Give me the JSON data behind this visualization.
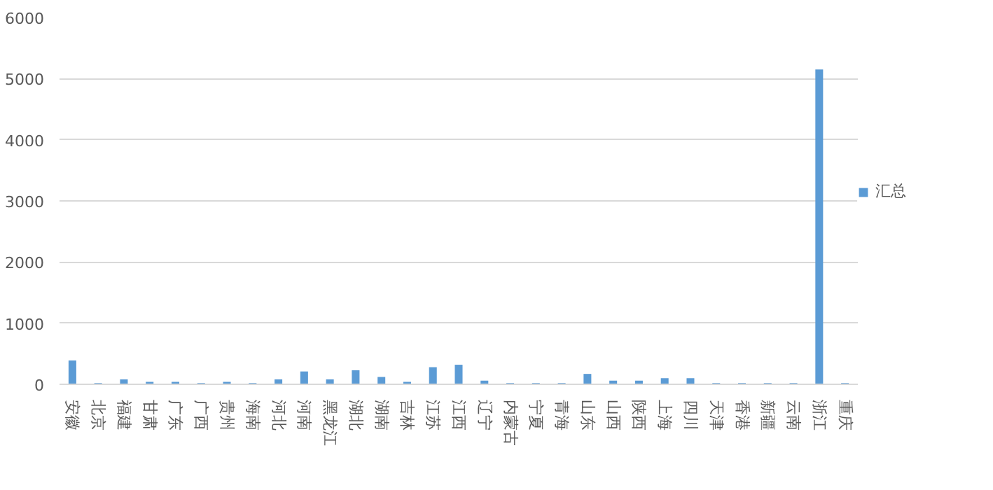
{
  "chart_data": {
    "type": "bar",
    "categories": [
      "安徽",
      "北京",
      "福建",
      "甘肃",
      "广东",
      "广西",
      "贵州",
      "海南",
      "河北",
      "河南",
      "黑龙江",
      "湖北",
      "湖南",
      "吉林",
      "江苏",
      "江西",
      "辽宁",
      "内蒙古",
      "宁夏",
      "青海",
      "山东",
      "山西",
      "陕西",
      "上海",
      "四川",
      "天津",
      "香港",
      "新疆",
      "云南",
      "浙江",
      "重庆"
    ],
    "series": [
      {
        "name": "汇总",
        "color": "#5b9bd5",
        "values": [
          390,
          20,
          80,
          40,
          40,
          20,
          40,
          20,
          80,
          210,
          80,
          230,
          120,
          40,
          280,
          320,
          60,
          20,
          20,
          20,
          170,
          60,
          60,
          100,
          100,
          20,
          20,
          20,
          20,
          5150,
          20
        ]
      }
    ],
    "ylim": [
      0,
      6000
    ],
    "yticks": [
      0,
      1000,
      2000,
      3000,
      4000,
      5000,
      6000
    ],
    "grid": "y",
    "legend": "right"
  }
}
